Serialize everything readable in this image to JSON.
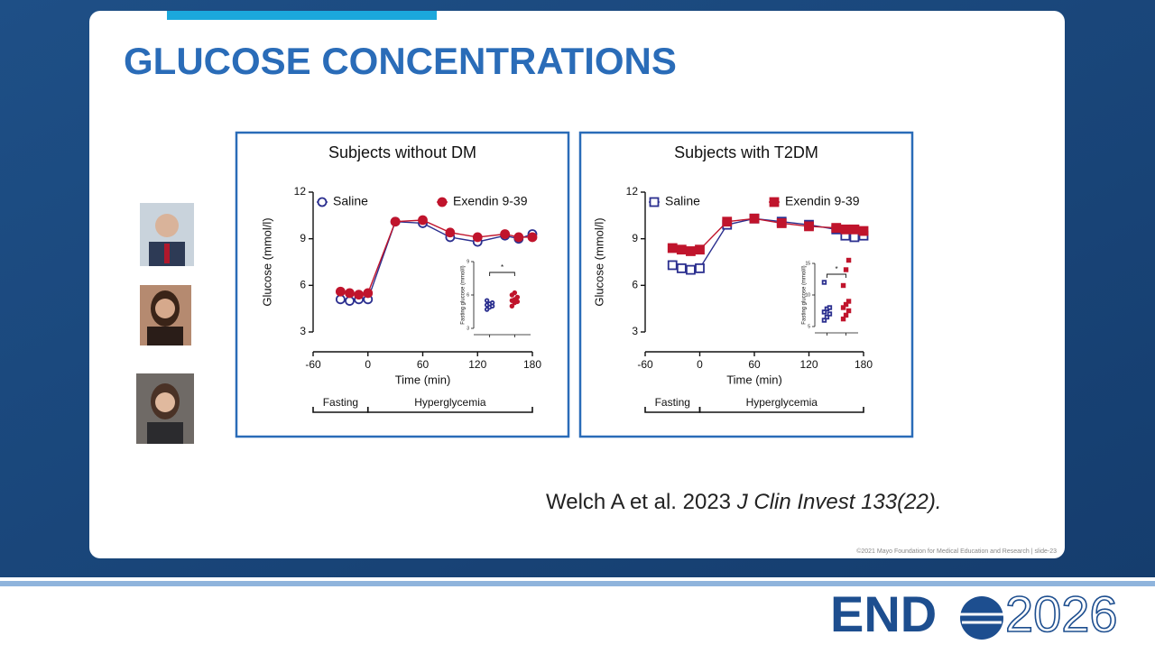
{
  "slide": {
    "title": "GLUCOSE CONCENTRATIONS",
    "citation": {
      "authors": "Welch A et al. 2023",
      "journal": "J Clin Invest 133(22)."
    },
    "footer": "©2021 Mayo Foundation for Medical Education and Research  |  slide-23",
    "logo": {
      "left": "END",
      "right": "2026"
    }
  },
  "chart_data": [
    {
      "type": "line",
      "title": "Subjects without DM",
      "xlabel": "Time (min)",
      "ylabel": "Glucose (mmol/l)",
      "marker": "circle",
      "x": [
        -30,
        -20,
        -10,
        0,
        30,
        60,
        90,
        120,
        150,
        165,
        180
      ],
      "series": [
        {
          "name": "Saline",
          "color": "#2b2f8f",
          "filled": false,
          "values": [
            5.1,
            5.0,
            5.1,
            5.1,
            10.1,
            10.0,
            9.1,
            8.8,
            9.2,
            9.0,
            9.3
          ]
        },
        {
          "name": "Exendin 9-39",
          "color": "#c0142c",
          "filled": true,
          "values": [
            5.6,
            5.5,
            5.4,
            5.5,
            10.1,
            10.2,
            9.4,
            9.1,
            9.3,
            9.1,
            9.1
          ]
        }
      ],
      "xlim": [
        -60,
        180
      ],
      "ylim": [
        3,
        12
      ],
      "xticks": [
        -60,
        0,
        60,
        120,
        180
      ],
      "yticks": [
        3,
        6,
        9,
        12
      ],
      "phases": [
        {
          "label": "Fasting",
          "from": -60,
          "to": 0
        },
        {
          "label": "Hyperglycemia",
          "from": 0,
          "to": 180
        }
      ],
      "inset": {
        "ylabel": "Fasting glucose (mmol/l)",
        "annotation": "*",
        "ylim": [
          3,
          9
        ],
        "yticks": [
          3,
          6,
          9
        ],
        "series": [
          {
            "values": [
              4.7,
              4.9,
              5.0,
              5.1,
              5.2,
              5.3,
              5.5
            ]
          },
          {
            "values": [
              5.0,
              5.3,
              5.4,
              5.5,
              5.6,
              5.8,
              6.0,
              6.2
            ]
          }
        ]
      }
    },
    {
      "type": "line",
      "title": "Subjects with T2DM",
      "xlabel": "Time (min)",
      "ylabel": "Glucose (mmol/l)",
      "marker": "square",
      "x": [
        -30,
        -20,
        -10,
        0,
        30,
        60,
        90,
        120,
        150,
        160,
        170,
        180
      ],
      "series": [
        {
          "name": "Saline",
          "color": "#2b2f8f",
          "filled": false,
          "values": [
            7.3,
            7.1,
            7.0,
            7.1,
            9.9,
            10.3,
            10.1,
            9.9,
            9.6,
            9.2,
            9.1,
            9.2
          ]
        },
        {
          "name": "Exendin 9-39",
          "color": "#c0142c",
          "filled": true,
          "values": [
            8.4,
            8.3,
            8.2,
            8.3,
            10.1,
            10.3,
            10.0,
            9.8,
            9.7,
            9.6,
            9.6,
            9.5
          ]
        }
      ],
      "xlim": [
        -60,
        180
      ],
      "ylim": [
        3,
        12
      ],
      "xticks": [
        -60,
        0,
        60,
        120,
        180
      ],
      "yticks": [
        3,
        6,
        9,
        12
      ],
      "phases": [
        {
          "label": "Fasting",
          "from": -60,
          "to": 0
        },
        {
          "label": "Hyperglycemia",
          "from": 0,
          "to": 180
        }
      ],
      "inset": {
        "ylabel": "Fasting glucose (mmol/l)",
        "annotation": "*",
        "ylim": [
          5,
          15
        ],
        "yticks": [
          5,
          10,
          15
        ],
        "series": [
          {
            "values": [
              6.0,
              6.5,
              7.0,
              7.3,
              7.8,
              8.0,
              12.0
            ]
          },
          {
            "values": [
              6.2,
              6.8,
              7.5,
              8.0,
              8.5,
              9.0,
              11.5,
              14.0,
              15.5
            ]
          }
        ]
      }
    }
  ]
}
